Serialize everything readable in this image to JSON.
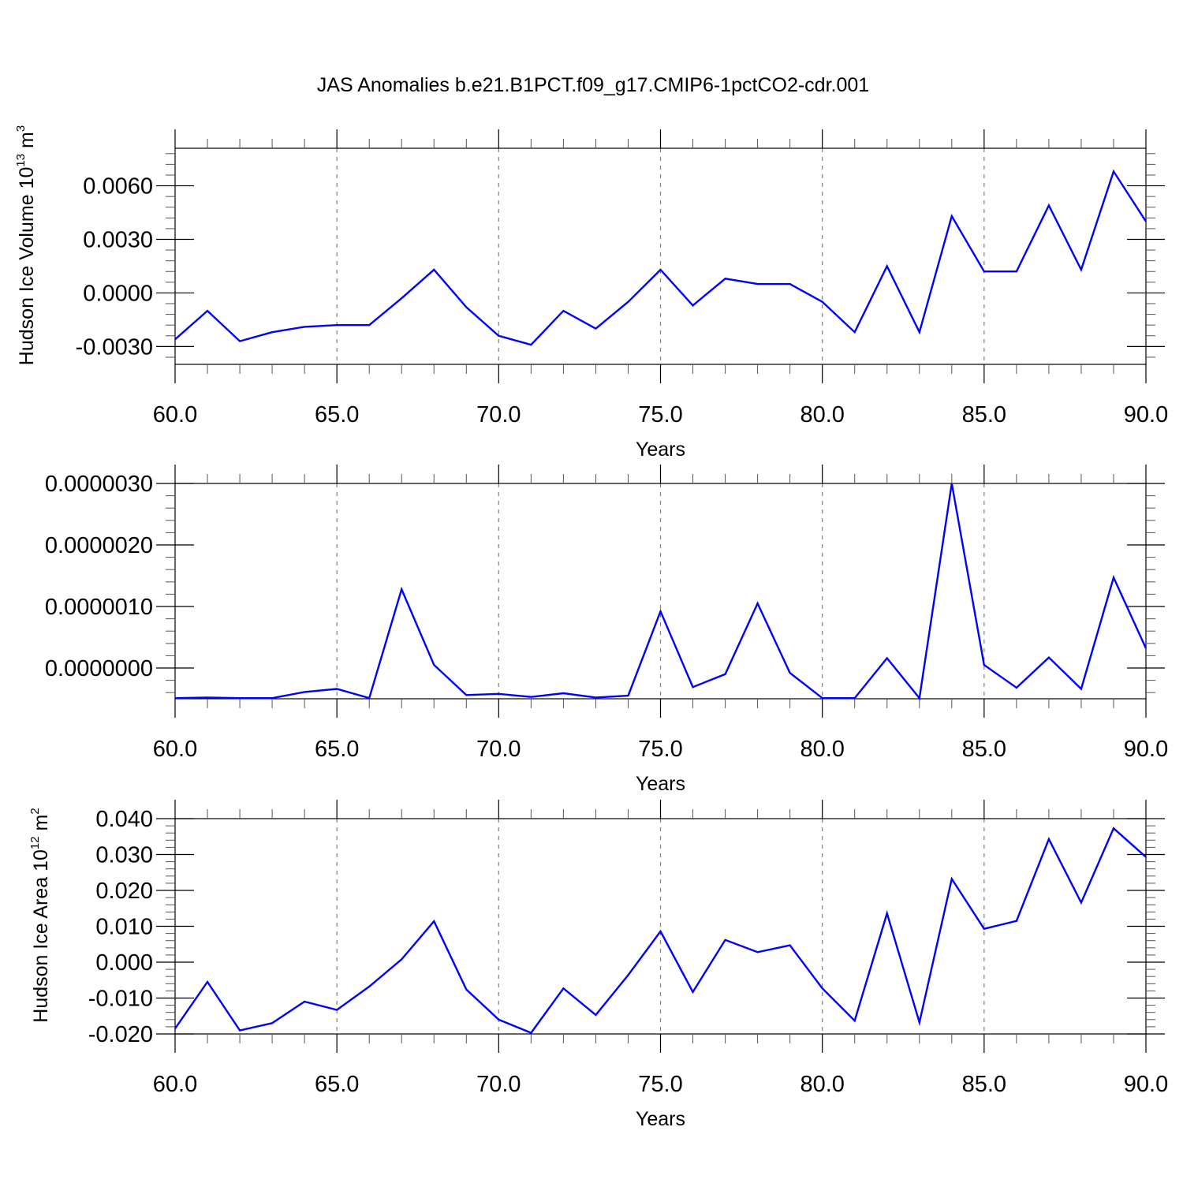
{
  "title": "JAS Anomalies b.e21.B1PCT.f09_g17.CMIP6-1pctCO2-cdr.001",
  "colors": {
    "series": "#0000ff",
    "grid": "#808080",
    "frame": "#000000"
  },
  "chart_data": [
    {
      "type": "line",
      "ylabel_text": "Hudson Ice Volume 10",
      "ylabel_exp": "13",
      "ylabel_unit": " m",
      "ylabel_unit_exp": "3",
      "xlabel": "Years",
      "xlim": [
        60,
        90
      ],
      "ylim": [
        -0.004,
        0.0081
      ],
      "xticks": [
        60,
        65,
        70,
        75,
        80,
        85,
        90
      ],
      "xtick_labels": [
        "60.0",
        "65.0",
        "70.0",
        "75.0",
        "80.0",
        "85.0",
        "90.0"
      ],
      "yticks": [
        -0.003,
        0.0,
        0.003,
        0.006
      ],
      "ytick_labels": [
        "-0.0030",
        "0.0000",
        "0.0030",
        "0.0060"
      ],
      "grid_x": true,
      "series": [
        {
          "x": [
            60,
            61,
            62,
            63,
            64,
            65,
            66,
            67,
            68,
            69,
            70,
            71,
            72,
            73,
            74,
            75,
            76,
            77,
            78,
            79,
            80,
            81,
            82,
            83,
            84,
            85,
            86,
            87,
            88,
            89,
            90
          ],
          "y": [
            -0.0026,
            -0.001,
            -0.0027,
            -0.0022,
            -0.0019,
            -0.0018,
            -0.0018,
            -0.0003,
            0.0013,
            -0.0008,
            -0.0024,
            -0.0029,
            -0.001,
            -0.002,
            -0.0005,
            0.0013,
            -0.0007,
            0.0008,
            0.0005,
            0.0005,
            -0.0005,
            -0.0022,
            0.0015,
            -0.0022,
            0.0043,
            0.0012,
            0.0012,
            0.0049,
            0.0013,
            0.0068,
            0.004
          ]
        }
      ]
    },
    {
      "type": "line",
      "xlabel": "Years",
      "xlim": [
        60,
        90
      ],
      "ylim": [
        -5e-07,
        3e-06
      ],
      "xticks": [
        60,
        65,
        70,
        75,
        80,
        85,
        90
      ],
      "xtick_labels": [
        "60.0",
        "65.0",
        "70.0",
        "75.0",
        "80.0",
        "85.0",
        "90.0"
      ],
      "yticks": [
        0.0,
        1e-06,
        2e-06,
        3e-06
      ],
      "ytick_labels": [
        "0.0000000",
        "0.0000010",
        "0.0000020",
        "0.0000030"
      ],
      "grid_x": true,
      "series": [
        {
          "x": [
            60,
            61,
            62,
            63,
            64,
            65,
            66,
            67,
            68,
            69,
            70,
            71,
            72,
            73,
            74,
            75,
            76,
            77,
            78,
            79,
            80,
            81,
            82,
            83,
            84,
            85,
            86,
            87,
            88,
            89,
            90
          ],
          "y": [
            -4.9e-07,
            -4.8e-07,
            -4.9e-07,
            -4.9e-07,
            -3.9e-07,
            -3.4e-07,
            -4.9e-07,
            1.28e-06,
            5e-08,
            -4.4e-07,
            -4.2e-07,
            -4.7e-07,
            -4.1e-07,
            -4.8e-07,
            -4.5e-07,
            9.2e-07,
            -3.1e-07,
            -1e-07,
            1.05e-06,
            -8e-08,
            -4.9e-07,
            -4.9e-07,
            1.6e-07,
            -4.9e-07,
            3e-06,
            5e-08,
            -3.2e-07,
            1.7e-07,
            -3.4e-07,
            1.47e-06,
            3.2e-07
          ]
        }
      ]
    },
    {
      "type": "line",
      "ylabel_text": "Hudson Ice Area 10",
      "ylabel_exp": "12",
      "ylabel_unit": " m",
      "ylabel_unit_exp": "2",
      "xlabel": "Years",
      "xlim": [
        60,
        90
      ],
      "ylim": [
        -0.02,
        0.04
      ],
      "xticks": [
        60,
        65,
        70,
        75,
        80,
        85,
        90
      ],
      "xtick_labels": [
        "60.0",
        "65.0",
        "70.0",
        "75.0",
        "80.0",
        "85.0",
        "90.0"
      ],
      "yticks": [
        -0.02,
        -0.01,
        0.0,
        0.01,
        0.02,
        0.03,
        0.04
      ],
      "ytick_labels": [
        "-0.020",
        "-0.010",
        "0.000",
        "0.010",
        "0.020",
        "0.030",
        "0.040"
      ],
      "grid_x": true,
      "series": [
        {
          "x": [
            60,
            61,
            62,
            63,
            64,
            65,
            66,
            67,
            68,
            69,
            70,
            71,
            72,
            73,
            74,
            75,
            76,
            77,
            78,
            79,
            80,
            81,
            82,
            83,
            84,
            85,
            86,
            87,
            88,
            89,
            90
          ],
          "y": [
            -0.0185,
            -0.0055,
            -0.019,
            -0.017,
            -0.011,
            -0.0133,
            -0.0068,
            0.0008,
            0.0114,
            -0.0076,
            -0.016,
            -0.0197,
            -0.0073,
            -0.0147,
            -0.0036,
            0.0086,
            -0.0083,
            0.0062,
            0.0028,
            0.0047,
            -0.0073,
            -0.0163,
            0.0136,
            -0.0168,
            0.0232,
            0.0093,
            0.0115,
            0.0343,
            0.0166,
            0.0373,
            0.0293
          ]
        }
      ]
    }
  ]
}
